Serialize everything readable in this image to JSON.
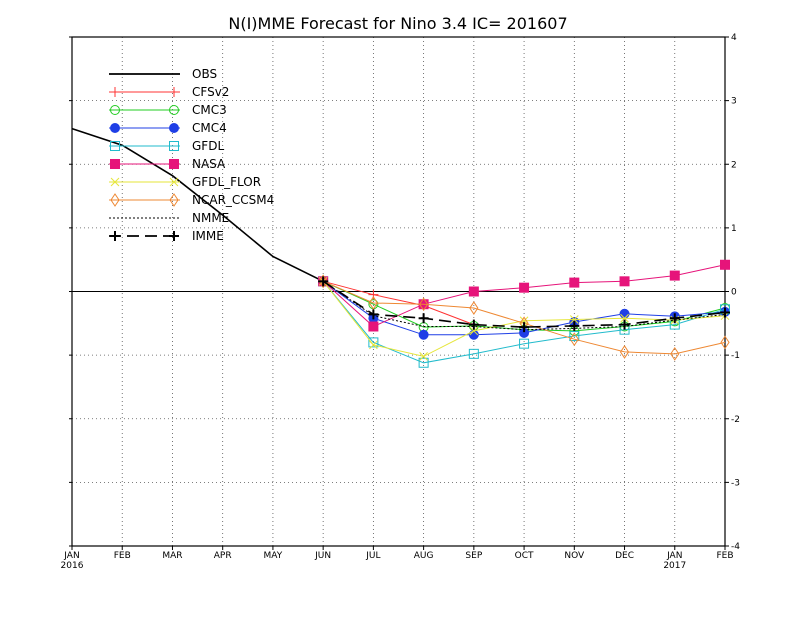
{
  "chart_data": {
    "type": "line",
    "title": "N(I)MME Forecast for Nino 3.4   IC= 201607",
    "xlabel": "",
    "ylabel": "",
    "categories": [
      "JAN",
      "FEB",
      "MAR",
      "APR",
      "MAY",
      "JUN",
      "JUL",
      "AUG",
      "SEP",
      "OCT",
      "NOV",
      "DEC",
      "JAN",
      "FEB"
    ],
    "year_labels": [
      {
        "index": 0,
        "label": "2016"
      },
      {
        "index": 12,
        "label": "2017"
      }
    ],
    "ylim": [
      -4,
      4
    ],
    "yticks": [
      -4,
      -3,
      -2,
      -1,
      0,
      1,
      2,
      3,
      4
    ],
    "grid": true,
    "zero_line": true,
    "legend_position": "top-left",
    "series": [
      {
        "name": "OBS",
        "color": "#000000",
        "marker": "none",
        "dash": "solid",
        "x": [
          0,
          1,
          2,
          3,
          4,
          5
        ],
        "values": [
          2.56,
          2.3,
          1.82,
          1.2,
          0.55,
          0.16
        ]
      },
      {
        "name": "CFSv2",
        "color": "#ff3333",
        "marker": "plus",
        "dash": "solid",
        "x": [
          5,
          6,
          7,
          8
        ],
        "values": [
          0.16,
          -0.05,
          -0.22,
          -0.52
        ]
      },
      {
        "name": "CMC3",
        "color": "#22cc22",
        "marker": "circle-open",
        "dash": "solid",
        "x": [
          5,
          6,
          7,
          8,
          9,
          10,
          11,
          12,
          13
        ],
        "values": [
          0.16,
          -0.2,
          -0.56,
          -0.54,
          -0.6,
          -0.62,
          -0.55,
          -0.47,
          -0.26
        ]
      },
      {
        "name": "CMC4",
        "color": "#1f3fe6",
        "marker": "circle-filled",
        "dash": "solid",
        "x": [
          5,
          6,
          7,
          8,
          9,
          10,
          11,
          12,
          13
        ],
        "values": [
          0.16,
          -0.42,
          -0.68,
          -0.68,
          -0.65,
          -0.48,
          -0.35,
          -0.39,
          -0.32
        ]
      },
      {
        "name": "GFDL",
        "color": "#22bbcc",
        "marker": "square-open",
        "dash": "solid",
        "x": [
          5,
          6,
          7,
          8,
          9,
          10,
          11,
          12,
          13
        ],
        "values": [
          0.16,
          -0.8,
          -1.12,
          -0.98,
          -0.82,
          -0.7,
          -0.6,
          -0.52,
          -0.28
        ]
      },
      {
        "name": "NASA",
        "color": "#e6147a",
        "marker": "square-filled",
        "dash": "solid",
        "x": [
          5,
          6,
          7,
          8,
          9,
          10,
          11,
          12,
          13
        ],
        "values": [
          0.16,
          -0.55,
          -0.2,
          0.0,
          0.06,
          0.14,
          0.16,
          0.25,
          0.42
        ]
      },
      {
        "name": "GFDL_FLOR",
        "color": "#e6e63a",
        "marker": "x",
        "dash": "solid",
        "x": [
          5,
          6,
          7,
          8,
          9,
          10,
          11,
          12,
          13
        ],
        "values": [
          0.16,
          -0.84,
          -1.02,
          -0.62,
          -0.46,
          -0.44,
          -0.42,
          -0.45,
          -0.38
        ]
      },
      {
        "name": "NCAR_CCSM4",
        "color": "#ee8833",
        "marker": "diamond-open",
        "dash": "solid",
        "x": [
          5,
          6,
          7,
          8,
          9,
          10,
          11,
          12,
          13
        ],
        "values": [
          0.16,
          -0.18,
          -0.2,
          -0.26,
          -0.5,
          -0.75,
          -0.95,
          -0.98,
          -0.8
        ]
      },
      {
        "name": "NMME",
        "color": "#000000",
        "marker": "none",
        "dash": "dotted",
        "x": [
          5,
          6,
          7,
          8,
          9,
          10,
          11,
          12,
          13
        ],
        "values": [
          0.16,
          -0.38,
          -0.55,
          -0.55,
          -0.6,
          -0.58,
          -0.55,
          -0.45,
          -0.36
        ]
      },
      {
        "name": "IMME",
        "color": "#000000",
        "marker": "plus-bold",
        "dash": "dashed",
        "x": [
          5,
          6,
          7,
          8,
          9,
          10,
          11,
          12,
          13
        ],
        "values": [
          0.16,
          -0.36,
          -0.42,
          -0.52,
          -0.56,
          -0.54,
          -0.52,
          -0.42,
          -0.33
        ]
      }
    ]
  }
}
